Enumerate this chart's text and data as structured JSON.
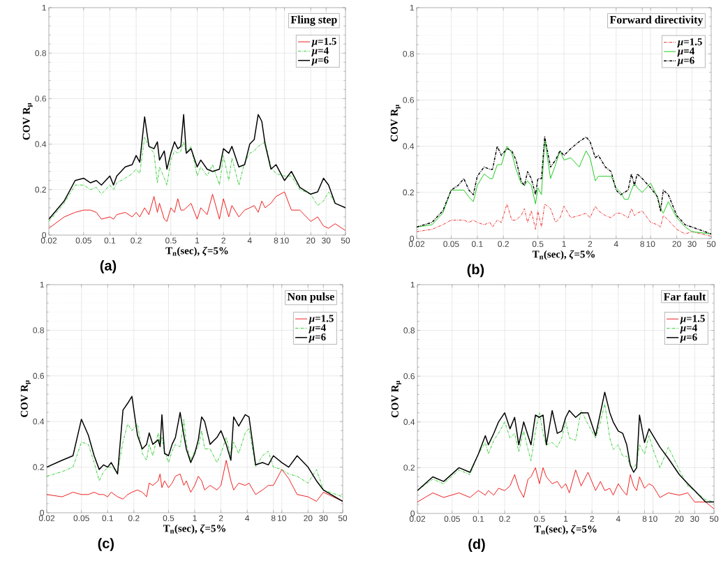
{
  "chart_data": [
    {
      "type": "line",
      "xlabel": "T$_{n}$(sec), *ζ*=5%",
      "ylabel": "COV R$_{μ}$",
      "legend_title": "Fling step",
      "annotations": [
        "(a)"
      ],
      "log": "x",
      "grid": true,
      "legend": "top right",
      "xlim": [
        0.02,
        50
      ],
      "ylim": [
        0,
        1
      ],
      "xticks": [
        0.02,
        0.05,
        0.1,
        0.2,
        0.5,
        1,
        2,
        4,
        8,
        10,
        20,
        30,
        50
      ],
      "yticks": [
        0,
        0.2,
        0.4,
        0.6,
        0.8,
        1
      ],
      "x": [
        0.02,
        0.03,
        0.04,
        0.05,
        0.06,
        0.07,
        0.08,
        0.1,
        0.11,
        0.12,
        0.15,
        0.18,
        0.2,
        0.22,
        0.25,
        0.28,
        0.32,
        0.35,
        0.37,
        0.42,
        0.45,
        0.5,
        0.55,
        0.6,
        0.65,
        0.7,
        0.75,
        0.85,
        1,
        1.1,
        1.3,
        1.5,
        1.8,
        2,
        2.3,
        2.5,
        3,
        3.5,
        4,
        4.5,
        5,
        5.5,
        6,
        7,
        8,
        10,
        12,
        15,
        20,
        24,
        28,
        32,
        38,
        50
      ],
      "series": [
        {
          "name": "*μ*=1.5",
          "color": "#f02020",
          "line_style": "solid",
          "values": [
            0.03,
            0.08,
            0.1,
            0.11,
            0.11,
            0.1,
            0.07,
            0.08,
            0.07,
            0.09,
            0.1,
            0.08,
            0.1,
            0.08,
            0.12,
            0.09,
            0.17,
            0.1,
            0.14,
            0.07,
            0.06,
            0.12,
            0.1,
            0.16,
            0.11,
            0.11,
            0.12,
            0.14,
            0.07,
            0.12,
            0.09,
            0.18,
            0.07,
            0.16,
            0.08,
            0.13,
            0.08,
            0.11,
            0.12,
            0.13,
            0.1,
            0.15,
            0.12,
            0.14,
            0.17,
            0.19,
            0.11,
            0.11,
            0.06,
            0.08,
            0.04,
            0.03,
            0.05,
            0.02
          ]
        },
        {
          "name": "*μ*=4",
          "color": "#33cc33",
          "line_style": "dashed",
          "values": [
            0.06,
            0.14,
            0.22,
            0.22,
            0.2,
            0.21,
            0.18,
            0.22,
            0.2,
            0.23,
            0.25,
            0.27,
            0.29,
            0.27,
            0.43,
            0.39,
            0.36,
            0.23,
            0.3,
            0.25,
            0.22,
            0.33,
            0.37,
            0.36,
            0.37,
            0.41,
            0.36,
            0.39,
            0.26,
            0.3,
            0.26,
            0.31,
            0.22,
            0.35,
            0.24,
            0.34,
            0.22,
            0.32,
            0.36,
            0.37,
            0.39,
            0.4,
            0.41,
            0.3,
            0.27,
            0.26,
            0.26,
            0.2,
            0.18,
            0.13,
            0.15,
            0.19,
            0.14,
            0.12
          ]
        },
        {
          "name": "*μ*=6",
          "color": "#000000",
          "line_style": "solid",
          "values": [
            0.07,
            0.15,
            0.24,
            0.25,
            0.23,
            0.24,
            0.22,
            0.26,
            0.22,
            0.26,
            0.3,
            0.31,
            0.35,
            0.32,
            0.52,
            0.39,
            0.38,
            0.41,
            0.33,
            0.37,
            0.29,
            0.36,
            0.41,
            0.38,
            0.39,
            0.53,
            0.36,
            0.38,
            0.3,
            0.33,
            0.29,
            0.28,
            0.29,
            0.38,
            0.36,
            0.39,
            0.3,
            0.31,
            0.4,
            0.42,
            0.53,
            0.5,
            0.4,
            0.29,
            0.31,
            0.24,
            0.28,
            0.21,
            0.18,
            0.19,
            0.25,
            0.22,
            0.14,
            0.12
          ]
        }
      ]
    },
    {
      "type": "line",
      "xlabel": "T$_{n}$(sec), *ζ*=5%",
      "ylabel": "COV R$_{μ}$",
      "legend_title": "Forward directivity",
      "annotations": [
        "(b)"
      ],
      "log": "x",
      "grid": true,
      "legend": "top right",
      "xlim": [
        0.02,
        50
      ],
      "ylim": [
        0,
        1
      ],
      "xticks": [
        0.02,
        0.05,
        0.1,
        0.2,
        0.5,
        1,
        2,
        4,
        8,
        10,
        20,
        30,
        50
      ],
      "yticks": [
        0,
        0.2,
        0.4,
        0.6,
        0.8,
        1
      ],
      "x": [
        0.02,
        0.03,
        0.04,
        0.05,
        0.06,
        0.07,
        0.08,
        0.09,
        0.1,
        0.12,
        0.14,
        0.15,
        0.17,
        0.19,
        0.22,
        0.25,
        0.28,
        0.32,
        0.35,
        0.38,
        0.42,
        0.47,
        0.5,
        0.55,
        0.6,
        0.7,
        0.8,
        0.9,
        1,
        1.2,
        1.5,
        1.8,
        2,
        2.3,
        2.5,
        3,
        3.5,
        4,
        4.5,
        5,
        5.5,
        6,
        6.5,
        7,
        8,
        10,
        12,
        13,
        14,
        16,
        20,
        25,
        30,
        50
      ],
      "series": [
        {
          "name": "*μ*=1.5",
          "color": "#f03030",
          "line_style": "dashed",
          "values": [
            0.03,
            0.04,
            0.06,
            0.08,
            0.08,
            0.08,
            0.07,
            0.08,
            0.07,
            0.06,
            0.07,
            0.05,
            0.08,
            0.07,
            0.15,
            0.08,
            0.08,
            0.1,
            0.13,
            0.07,
            0.12,
            0.04,
            0.12,
            0.05,
            0.15,
            0.13,
            0.07,
            0.09,
            0.14,
            0.09,
            0.1,
            0.11,
            0.09,
            0.14,
            0.12,
            0.1,
            0.09,
            0.11,
            0.11,
            0.1,
            0.09,
            0.13,
            0.1,
            0.11,
            0.12,
            0.07,
            0.06,
            0.05,
            0.1,
            0.08,
            0.04,
            0.02,
            0.03,
            0.01
          ]
        },
        {
          "name": "*μ*=4",
          "color": "#22cc22",
          "line_style": "solid",
          "values": [
            0.05,
            0.06,
            0.11,
            0.21,
            0.21,
            0.21,
            0.18,
            0.16,
            0.23,
            0.28,
            0.26,
            0.26,
            0.32,
            0.32,
            0.4,
            0.37,
            0.3,
            0.24,
            0.23,
            0.25,
            0.23,
            0.15,
            0.22,
            0.19,
            0.43,
            0.26,
            0.32,
            0.38,
            0.34,
            0.35,
            0.31,
            0.38,
            0.35,
            0.25,
            0.27,
            0.27,
            0.27,
            0.22,
            0.2,
            0.17,
            0.17,
            0.21,
            0.24,
            0.22,
            0.2,
            0.24,
            0.18,
            0.13,
            0.11,
            0.16,
            0.09,
            0.05,
            0.03,
            0.02
          ]
        },
        {
          "name": "*μ*=6",
          "color": "#000000",
          "line_style": "dashed",
          "values": [
            0.05,
            0.07,
            0.12,
            0.21,
            0.23,
            0.26,
            0.21,
            0.19,
            0.27,
            0.31,
            0.3,
            0.3,
            0.4,
            0.36,
            0.39,
            0.38,
            0.34,
            0.25,
            0.23,
            0.29,
            0.26,
            0.19,
            0.26,
            0.26,
            0.44,
            0.31,
            0.34,
            0.38,
            0.36,
            0.39,
            0.42,
            0.44,
            0.42,
            0.35,
            0.36,
            0.31,
            0.29,
            0.21,
            0.19,
            0.2,
            0.21,
            0.28,
            0.23,
            0.28,
            0.26,
            0.22,
            0.18,
            0.12,
            0.21,
            0.19,
            0.1,
            0.06,
            0.05,
            0.02
          ]
        }
      ]
    },
    {
      "type": "line",
      "xlabel": "T$_{n}$(sec), *ζ*=5%",
      "ylabel": "COV R$_{μ}$",
      "legend_title": "Non pulse",
      "annotations": [
        "(c)"
      ],
      "log": "x",
      "grid": true,
      "legend": "top right",
      "xlim": [
        0.02,
        50
      ],
      "ylim": [
        0,
        1
      ],
      "xticks": [
        0.02,
        0.05,
        0.1,
        0.2,
        0.5,
        1,
        2,
        4,
        8,
        10,
        20,
        30,
        50
      ],
      "yticks": [
        0,
        0.2,
        0.4,
        0.6,
        0.8,
        1
      ],
      "x": [
        0.02,
        0.03,
        0.04,
        0.05,
        0.06,
        0.07,
        0.08,
        0.09,
        0.1,
        0.11,
        0.13,
        0.15,
        0.17,
        0.19,
        0.22,
        0.25,
        0.28,
        0.3,
        0.33,
        0.38,
        0.4,
        0.42,
        0.45,
        0.5,
        0.55,
        0.6,
        0.68,
        0.75,
        0.8,
        0.9,
        1,
        1.1,
        1.2,
        1.3,
        1.5,
        1.8,
        2,
        2.3,
        2.6,
        2.8,
        3.2,
        3.8,
        4.2,
        5,
        6,
        7,
        8,
        10,
        12,
        15,
        20,
        25,
        30,
        50
      ],
      "series": [
        {
          "name": "*μ*=1.5",
          "color": "#f02020",
          "line_style": "solid",
          "values": [
            0.08,
            0.07,
            0.09,
            0.08,
            0.08,
            0.09,
            0.08,
            0.08,
            0.07,
            0.09,
            0.07,
            0.06,
            0.08,
            0.09,
            0.1,
            0.09,
            0.07,
            0.13,
            0.12,
            0.14,
            0.17,
            0.11,
            0.14,
            0.11,
            0.13,
            0.16,
            0.17,
            0.12,
            0.14,
            0.09,
            0.12,
            0.16,
            0.14,
            0.1,
            0.12,
            0.1,
            0.12,
            0.23,
            0.14,
            0.1,
            0.13,
            0.12,
            0.13,
            0.08,
            0.1,
            0.12,
            0.12,
            0.19,
            0.15,
            0.08,
            0.07,
            0.05,
            0.09,
            0.05
          ]
        },
        {
          "name": "*μ*=4",
          "color": "#33cc33",
          "line_style": "dashed",
          "values": [
            0.16,
            0.18,
            0.2,
            0.31,
            0.3,
            0.22,
            0.14,
            0.18,
            0.2,
            0.2,
            0.18,
            0.31,
            0.39,
            0.36,
            0.39,
            0.26,
            0.23,
            0.3,
            0.25,
            0.35,
            0.3,
            0.33,
            0.27,
            0.22,
            0.27,
            0.3,
            0.29,
            0.41,
            0.3,
            0.23,
            0.27,
            0.29,
            0.36,
            0.28,
            0.28,
            0.22,
            0.26,
            0.33,
            0.25,
            0.31,
            0.26,
            0.35,
            0.37,
            0.2,
            0.25,
            0.27,
            0.2,
            0.19,
            0.17,
            0.16,
            0.13,
            0.19,
            0.1,
            0.07
          ]
        },
        {
          "name": "*μ*=6",
          "color": "#000000",
          "line_style": "solid",
          "values": [
            0.2,
            0.23,
            0.25,
            0.41,
            0.34,
            0.25,
            0.19,
            0.21,
            0.2,
            0.22,
            0.17,
            0.45,
            0.48,
            0.51,
            0.34,
            0.28,
            0.3,
            0.35,
            0.3,
            0.32,
            0.29,
            0.43,
            0.26,
            0.25,
            0.3,
            0.33,
            0.44,
            0.34,
            0.28,
            0.22,
            0.26,
            0.32,
            0.42,
            0.4,
            0.3,
            0.33,
            0.36,
            0.3,
            0.23,
            0.42,
            0.38,
            0.43,
            0.42,
            0.21,
            0.22,
            0.21,
            0.25,
            0.22,
            0.2,
            0.25,
            0.2,
            0.14,
            0.1,
            0.05
          ]
        }
      ]
    },
    {
      "type": "line",
      "xlabel": "T$_{n}$(sec), *ζ*=5%",
      "ylabel": "COV R$_{μ}$",
      "legend_title": "Far fault",
      "annotations": [
        "(d)"
      ],
      "log": "x",
      "grid": true,
      "legend": "top right",
      "xlim": [
        0.02,
        50
      ],
      "ylim": [
        0,
        1
      ],
      "xticks": [
        0.02,
        0.05,
        0.1,
        0.2,
        0.5,
        1,
        2,
        4,
        8,
        10,
        20,
        30,
        50
      ],
      "yticks": [
        0,
        0.2,
        0.4,
        0.6,
        0.8,
        1
      ],
      "x": [
        0.02,
        0.03,
        0.04,
        0.06,
        0.08,
        0.1,
        0.12,
        0.13,
        0.15,
        0.17,
        0.2,
        0.23,
        0.26,
        0.29,
        0.33,
        0.37,
        0.4,
        0.45,
        0.5,
        0.55,
        0.6,
        0.7,
        0.8,
        0.9,
        1,
        1.1,
        1.3,
        1.5,
        1.8,
        2.2,
        2.5,
        2.8,
        3.2,
        3.5,
        4,
        4.5,
        5,
        5.5,
        6,
        6.5,
        7,
        8,
        9,
        10,
        12,
        15,
        20,
        25,
        30,
        40,
        50
      ],
      "series": [
        {
          "name": "*μ*=1.5",
          "color": "#f02020",
          "line_style": "solid",
          "values": [
            0.05,
            0.09,
            0.07,
            0.09,
            0.07,
            0.1,
            0.08,
            0.1,
            0.08,
            0.11,
            0.1,
            0.12,
            0.17,
            0.11,
            0.07,
            0.15,
            0.16,
            0.2,
            0.13,
            0.2,
            0.16,
            0.13,
            0.14,
            0.11,
            0.13,
            0.09,
            0.19,
            0.12,
            0.18,
            0.1,
            0.14,
            0.1,
            0.11,
            0.08,
            0.13,
            0.1,
            0.08,
            0.17,
            0.12,
            0.1,
            0.16,
            0.11,
            0.13,
            0.12,
            0.07,
            0.09,
            0.08,
            0.09,
            0.05,
            0.05,
            0.02
          ]
        },
        {
          "name": "*μ*=4",
          "color": "#33cc33",
          "line_style": "dashed",
          "values": [
            0.1,
            0.15,
            0.13,
            0.19,
            0.17,
            0.26,
            0.31,
            0.26,
            0.32,
            0.35,
            0.4,
            0.33,
            0.35,
            0.27,
            0.36,
            0.28,
            0.23,
            0.36,
            0.44,
            0.35,
            0.3,
            0.31,
            0.29,
            0.33,
            0.4,
            0.33,
            0.32,
            0.45,
            0.39,
            0.33,
            0.4,
            0.48,
            0.33,
            0.28,
            0.3,
            0.25,
            0.25,
            0.21,
            0.2,
            0.22,
            0.3,
            0.26,
            0.34,
            0.28,
            0.2,
            0.29,
            0.19,
            0.12,
            0.1,
            0.06,
            0.05
          ]
        },
        {
          "name": "*μ*=6",
          "color": "#000000",
          "line_style": "solid",
          "values": [
            0.1,
            0.16,
            0.14,
            0.2,
            0.18,
            0.26,
            0.34,
            0.3,
            0.35,
            0.4,
            0.44,
            0.37,
            0.42,
            0.3,
            0.4,
            0.34,
            0.3,
            0.43,
            0.42,
            0.43,
            0.3,
            0.45,
            0.35,
            0.36,
            0.42,
            0.45,
            0.42,
            0.44,
            0.44,
            0.34,
            0.44,
            0.53,
            0.44,
            0.4,
            0.36,
            0.35,
            0.3,
            0.21,
            0.18,
            0.2,
            0.43,
            0.31,
            0.37,
            0.34,
            0.29,
            0.24,
            0.17,
            0.13,
            0.1,
            0.05,
            0.05
          ]
        }
      ]
    }
  ]
}
